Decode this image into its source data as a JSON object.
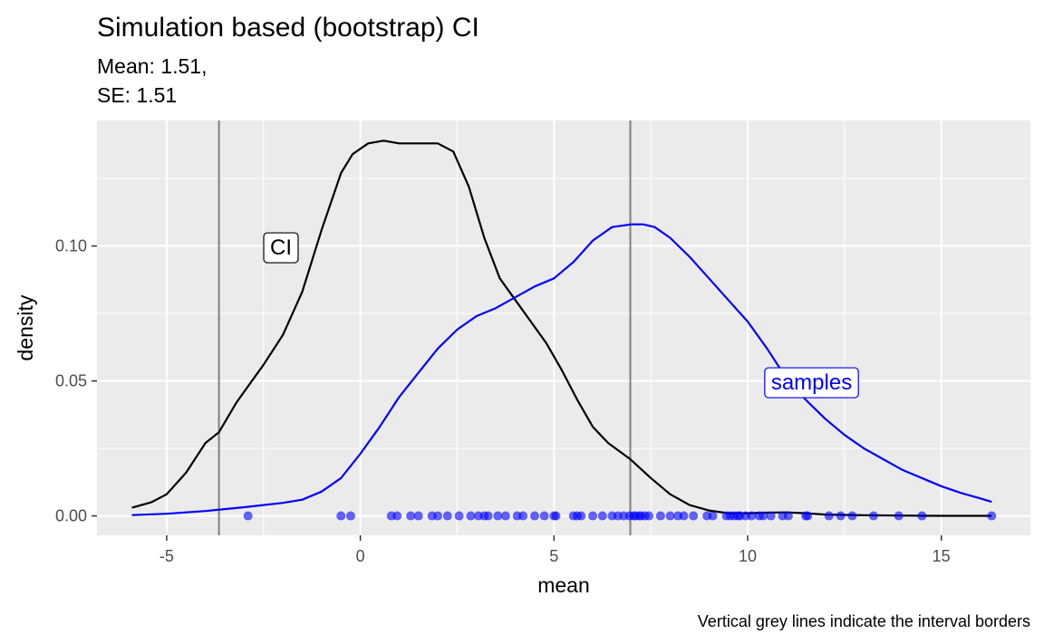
{
  "chart_data": {
    "type": "line",
    "title": "Simulation based (bootstrap) CI",
    "subtitle_lines": [
      "Mean: 1.51,",
      "SE: 1.51"
    ],
    "caption": "Vertical grey lines indicate the interval borders",
    "xlabel": "mean",
    "ylabel": "density",
    "xlim": [
      -6.8,
      17.3
    ],
    "ylim": [
      -0.0072,
      0.1465
    ],
    "x_ticks": [
      -5,
      0,
      5,
      10,
      15
    ],
    "x_tick_labels": [
      "-5",
      "0",
      "5",
      "10",
      "15"
    ],
    "y_ticks": [
      0.0,
      0.05,
      0.1
    ],
    "y_tick_labels": [
      "0.00",
      "0.05",
      "0.10"
    ],
    "grid": true,
    "vlines": [
      -3.65,
      6.97
    ],
    "vline_color": "#808080",
    "series": [
      {
        "label": "CI",
        "color": "#000000",
        "label_at": [
          -2.05,
          0.0995
        ],
        "x": [
          -5.9,
          -5.4,
          -5.0,
          -4.5,
          -4.0,
          -3.65,
          -3.2,
          -2.5,
          -2.0,
          -1.5,
          -1.0,
          -0.5,
          -0.2,
          0.2,
          0.6,
          1.0,
          1.5,
          2.0,
          2.4,
          2.8,
          3.2,
          3.6,
          4.0,
          4.4,
          4.8,
          5.2,
          5.6,
          6.0,
          6.4,
          6.97,
          7.5,
          8.0,
          8.5,
          9.0,
          9.5,
          10.0,
          10.5,
          11.0,
          11.5,
          12.0,
          13.0,
          14.0,
          15.0,
          16.3
        ],
        "y": [
          0.003,
          0.005,
          0.008,
          0.016,
          0.027,
          0.031,
          0.042,
          0.056,
          0.067,
          0.083,
          0.106,
          0.127,
          0.134,
          0.138,
          0.139,
          0.138,
          0.138,
          0.138,
          0.135,
          0.122,
          0.103,
          0.088,
          0.08,
          0.072,
          0.064,
          0.054,
          0.043,
          0.033,
          0.027,
          0.021,
          0.014,
          0.008,
          0.004,
          0.002,
          0.001,
          0.001,
          0.0012,
          0.0013,
          0.001,
          0.0005,
          0.0002,
          0.0001,
          0.0,
          0.0
        ]
      },
      {
        "label": "samples",
        "color": "#0000ff",
        "label_at": [
          11.65,
          0.0495
        ],
        "x": [
          -5.9,
          -5.0,
          -4.0,
          -3.0,
          -2.0,
          -1.5,
          -1.0,
          -0.5,
          0.0,
          0.5,
          1.0,
          1.5,
          2.0,
          2.5,
          3.0,
          3.5,
          4.0,
          4.5,
          5.0,
          5.5,
          6.0,
          6.5,
          7.0,
          7.3,
          7.6,
          8.0,
          8.5,
          9.0,
          9.5,
          10.0,
          10.5,
          11.0,
          11.5,
          12.0,
          12.5,
          13.0,
          13.5,
          14.0,
          14.5,
          15.0,
          15.5,
          16.0,
          16.3
        ],
        "y": [
          0.0003,
          0.0008,
          0.0018,
          0.0032,
          0.0048,
          0.006,
          0.009,
          0.014,
          0.023,
          0.033,
          0.044,
          0.053,
          0.062,
          0.069,
          0.074,
          0.077,
          0.081,
          0.085,
          0.088,
          0.094,
          0.102,
          0.107,
          0.108,
          0.108,
          0.107,
          0.103,
          0.096,
          0.088,
          0.08,
          0.072,
          0.062,
          0.051,
          0.043,
          0.036,
          0.03,
          0.025,
          0.021,
          0.017,
          0.014,
          0.011,
          0.0085,
          0.0065,
          0.0052
        ]
      }
    ],
    "rug_points": {
      "color": "#0000ff",
      "x": [
        -2.9,
        -0.5,
        -0.25,
        0.8,
        0.95,
        1.3,
        1.5,
        1.85,
        2.0,
        2.25,
        2.55,
        2.85,
        3.05,
        3.2,
        3.3,
        3.55,
        3.75,
        4.05,
        4.2,
        4.5,
        4.75,
        5.0,
        5.05,
        5.5,
        5.6,
        5.7,
        6.0,
        6.25,
        6.5,
        6.65,
        6.8,
        6.95,
        7.05,
        7.1,
        7.2,
        7.25,
        7.35,
        7.45,
        7.75,
        8.0,
        8.2,
        8.35,
        8.6,
        8.95,
        9.1,
        9.45,
        9.55,
        9.65,
        9.75,
        9.8,
        9.95,
        10.1,
        10.3,
        10.4,
        10.6,
        10.9,
        11.05,
        11.5,
        11.55,
        12.1,
        12.4,
        12.7,
        13.25,
        13.9,
        14.5,
        16.3
      ]
    }
  }
}
